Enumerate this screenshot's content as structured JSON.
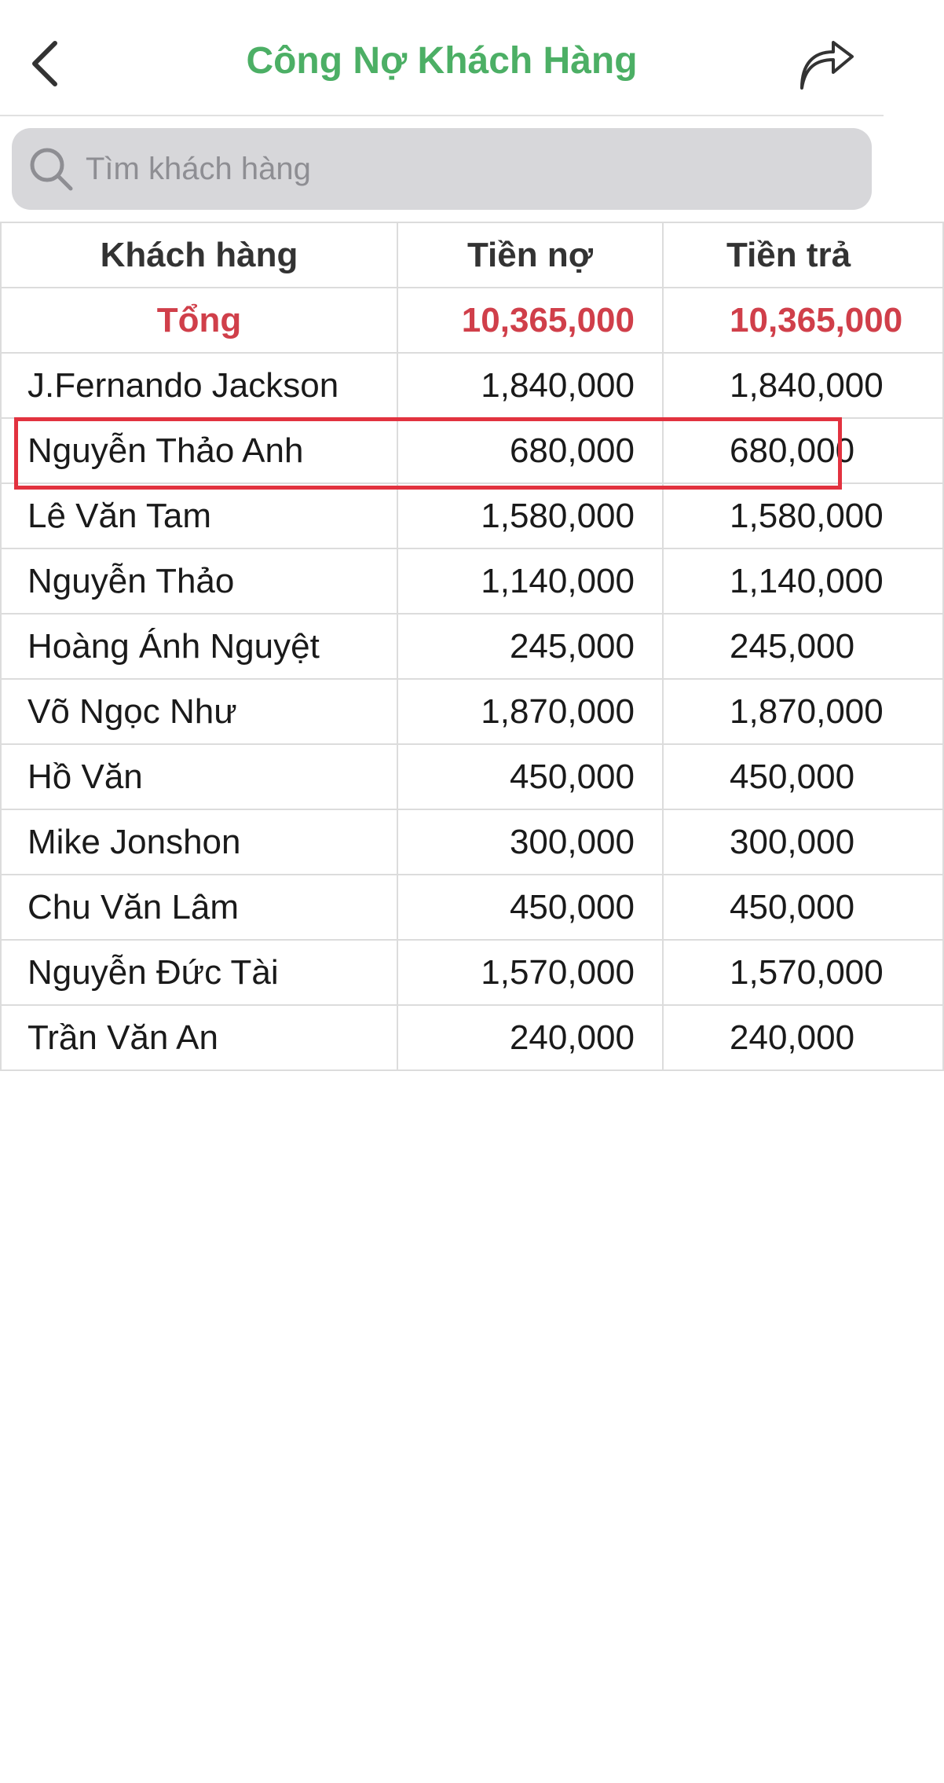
{
  "header": {
    "title": "Công Nợ Khách Hàng",
    "back_icon": "chevron-left-icon",
    "share_icon": "share-icon"
  },
  "search": {
    "placeholder": "Tìm khách hàng",
    "icon": "search-icon"
  },
  "colors": {
    "title_green": "#4caf65",
    "total_red": "#d03f4a",
    "highlight_red": "#e2323f"
  },
  "table": {
    "headers": [
      "Khách hàng",
      "Tiền nợ",
      "Tiền trả"
    ],
    "total": [
      "Tổng",
      "10,365,000",
      "10,365,000"
    ],
    "rows": [
      [
        "J.Fernando Jackson",
        "1,840,000",
        "1,840,000"
      ],
      [
        "Nguyễn Thảo Anh",
        "680,000",
        "680,000"
      ],
      [
        "Lê Văn Tam",
        "1,580,000",
        "1,580,000"
      ],
      [
        "Nguyễn Thảo",
        "1,140,000",
        "1,140,000"
      ],
      [
        "Hoàng Ánh Nguyệt",
        "245,000",
        "245,000"
      ],
      [
        "Võ Ngọc Như",
        "1,870,000",
        "1,870,000"
      ],
      [
        "Hồ Văn",
        "450,000",
        "450,000"
      ],
      [
        "Mike Jonshon",
        "300,000",
        "300,000"
      ],
      [
        "Chu Văn Lâm",
        "450,000",
        "450,000"
      ],
      [
        "Nguyễn Đức Tài",
        "1,570,000",
        "1,570,000"
      ],
      [
        "Trần Văn An",
        "240,000",
        "240,000"
      ]
    ]
  }
}
